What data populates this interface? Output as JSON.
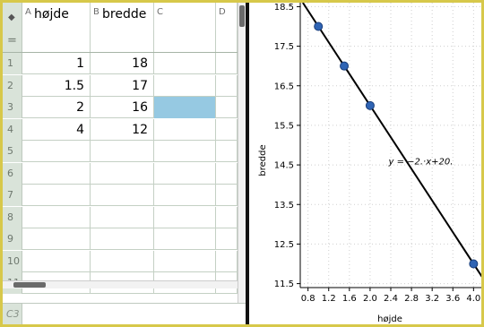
{
  "spreadsheet": {
    "corner_icon": "diamond-icon",
    "formula_label": "=",
    "columns": [
      {
        "letter": "A",
        "name": "højde"
      },
      {
        "letter": "B",
        "name": "bredde"
      },
      {
        "letter": "C",
        "name": ""
      },
      {
        "letter": "D",
        "name": ""
      }
    ],
    "rows": [
      {
        "num": "1",
        "a": "1",
        "b": "18"
      },
      {
        "num": "2",
        "a": "1.5",
        "b": "17"
      },
      {
        "num": "3",
        "a": "2",
        "b": "16"
      },
      {
        "num": "4",
        "a": "4",
        "b": "12"
      },
      {
        "num": "5",
        "a": "",
        "b": ""
      },
      {
        "num": "6",
        "a": "",
        "b": ""
      },
      {
        "num": "7",
        "a": "",
        "b": ""
      },
      {
        "num": "8",
        "a": "",
        "b": ""
      },
      {
        "num": "9",
        "a": "",
        "b": ""
      },
      {
        "num": "10",
        "a": "",
        "b": ""
      },
      {
        "num": "11",
        "a": "",
        "b": ""
      }
    ],
    "selected_cell": "C3",
    "cell_reference": "C3"
  },
  "chart_data": {
    "type": "scatter",
    "xlabel": "højde",
    "ylabel": "bredde",
    "xlim": [
      0.65,
      4.15
    ],
    "ylim": [
      11.4,
      18.6
    ],
    "x_ticks": [
      "0.8",
      "1.2",
      "1.6",
      "2.0",
      "2.4",
      "2.8",
      "3.2",
      "3.6",
      "4.0"
    ],
    "y_ticks": [
      "11.5",
      "12.5",
      "13.5",
      "14.5",
      "15.5",
      "16.5",
      "17.5",
      "18.5"
    ],
    "points": [
      {
        "x": 1,
        "y": 18
      },
      {
        "x": 1.5,
        "y": 17
      },
      {
        "x": 2,
        "y": 16
      },
      {
        "x": 4,
        "y": 12
      }
    ],
    "regression_line": {
      "slope": -2,
      "intercept": 20
    },
    "equation_label": "y = −2.·x+20.",
    "point_color": "#2f64b4",
    "line_color": "#000000"
  }
}
